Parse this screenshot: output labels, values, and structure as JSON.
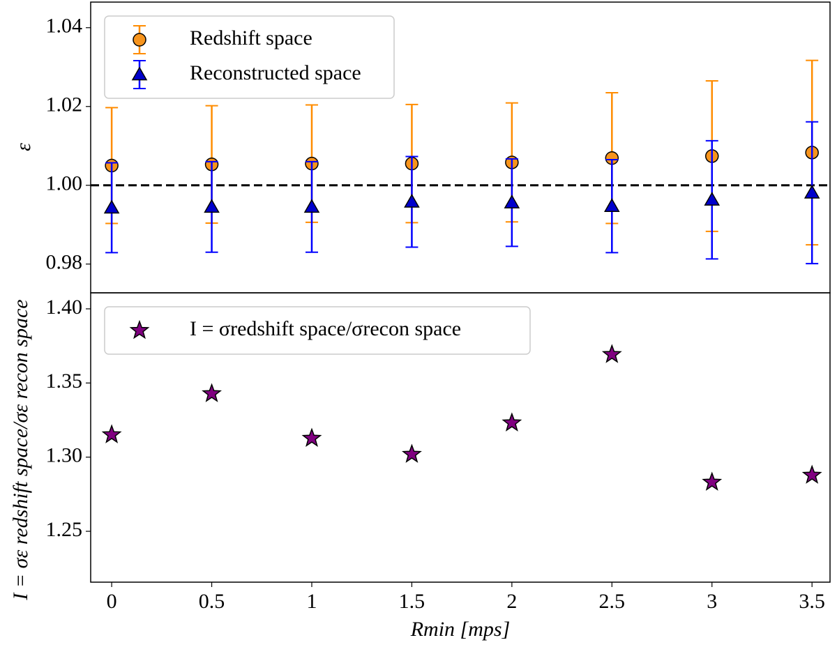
{
  "chart_data": [
    {
      "type": "errorbar",
      "ylabel": "ε",
      "x": [
        0,
        0.5,
        1,
        1.5,
        2,
        2.5,
        3,
        3.5
      ],
      "series": [
        {
          "name": "Redshift space",
          "color": "#ff8c00",
          "marker_color": "#f7941d",
          "marker": "circle",
          "values": [
            1.005,
            1.0053,
            1.0055,
            1.0055,
            1.0058,
            1.0069,
            1.0074,
            1.0083
          ],
          "errors": [
            0.0147,
            0.0149,
            0.0149,
            0.015,
            0.0151,
            0.0166,
            0.0191,
            0.0234
          ]
        },
        {
          "name": "Reconstructed space",
          "color": "#0000ff",
          "marker_color": "#0000cc",
          "marker": "triangle",
          "values": [
            0.9943,
            0.9945,
            0.9945,
            0.9958,
            0.9956,
            0.9947,
            0.9963,
            0.9981
          ],
          "errors": [
            0.0114,
            0.0115,
            0.0115,
            0.0115,
            0.0111,
            0.0118,
            0.015,
            0.018
          ]
        }
      ],
      "hline": 1,
      "xlim": [
        -0.105,
        3.59
      ],
      "ylim": [
        0.9727,
        1.0465
      ],
      "yticks": [
        0.98,
        {
          "value": 1,
          "label": "1.00"
        },
        1.02,
        1.04
      ],
      "legend": "upper left"
    },
    {
      "type": "scatter",
      "ylabel": "I = σε redshift space/σε recon space",
      "xlabel": "Rmin [mps]",
      "x": [
        0,
        0.5,
        1,
        1.5,
        2,
        2.5,
        3,
        3.5
      ],
      "series": [
        {
          "name": "I = σredshift space/σrecon space",
          "color": "#800080",
          "marker": "star",
          "values": [
            1.3151,
            1.3428,
            1.3127,
            1.3019,
            1.3231,
            1.3692,
            1.2831,
            1.2878
          ]
        }
      ],
      "xlim": [
        -0.105,
        3.59
      ],
      "xticks": [
        0,
        0.5,
        1,
        1.5,
        2,
        2.5,
        3,
        3.5
      ],
      "ylim": [
        1.2157,
        1.4108
      ],
      "yticks": [
        1.25,
        {
          "value": 1.3,
          "label": "1.30"
        },
        1.35,
        {
          "value": 1.4,
          "label": "1.40"
        }
      ],
      "legend": "upper left"
    }
  ]
}
